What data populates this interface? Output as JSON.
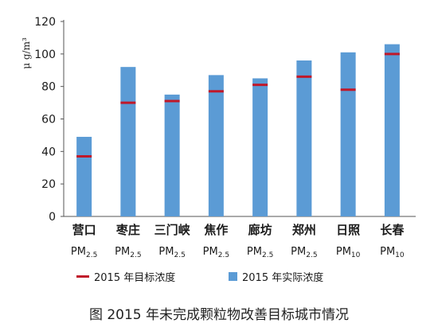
{
  "chart_data": {
    "type": "bar",
    "categories": [
      "营口",
      "枣庄",
      "三门峡",
      "焦作",
      "廊坊",
      "郑州",
      "日照",
      "长春"
    ],
    "pollutants": [
      "PM2.5",
      "PM2.5",
      "PM2.5",
      "PM2.5",
      "PM2.5",
      "PM2.5",
      "PM10",
      "PM10"
    ],
    "series": [
      {
        "name": "2015 年实际浓度",
        "kind": "bar",
        "color": "#5b9bd5",
        "values": [
          49,
          92,
          75,
          87,
          85,
          96,
          101,
          106
        ]
      },
      {
        "name": "2015 年目标浓度",
        "kind": "marker",
        "color": "#c0182a",
        "values": [
          37,
          70,
          71,
          77,
          81,
          86,
          78,
          100
        ]
      }
    ],
    "ylabel": "μ g/m³",
    "ylim": [
      0,
      120
    ],
    "yticks": [
      0,
      20,
      40,
      60,
      80,
      100,
      120
    ],
    "grid": false,
    "legend": "bottom",
    "caption": "图 2015 年未完成颗粒物改善目标城市情况"
  }
}
